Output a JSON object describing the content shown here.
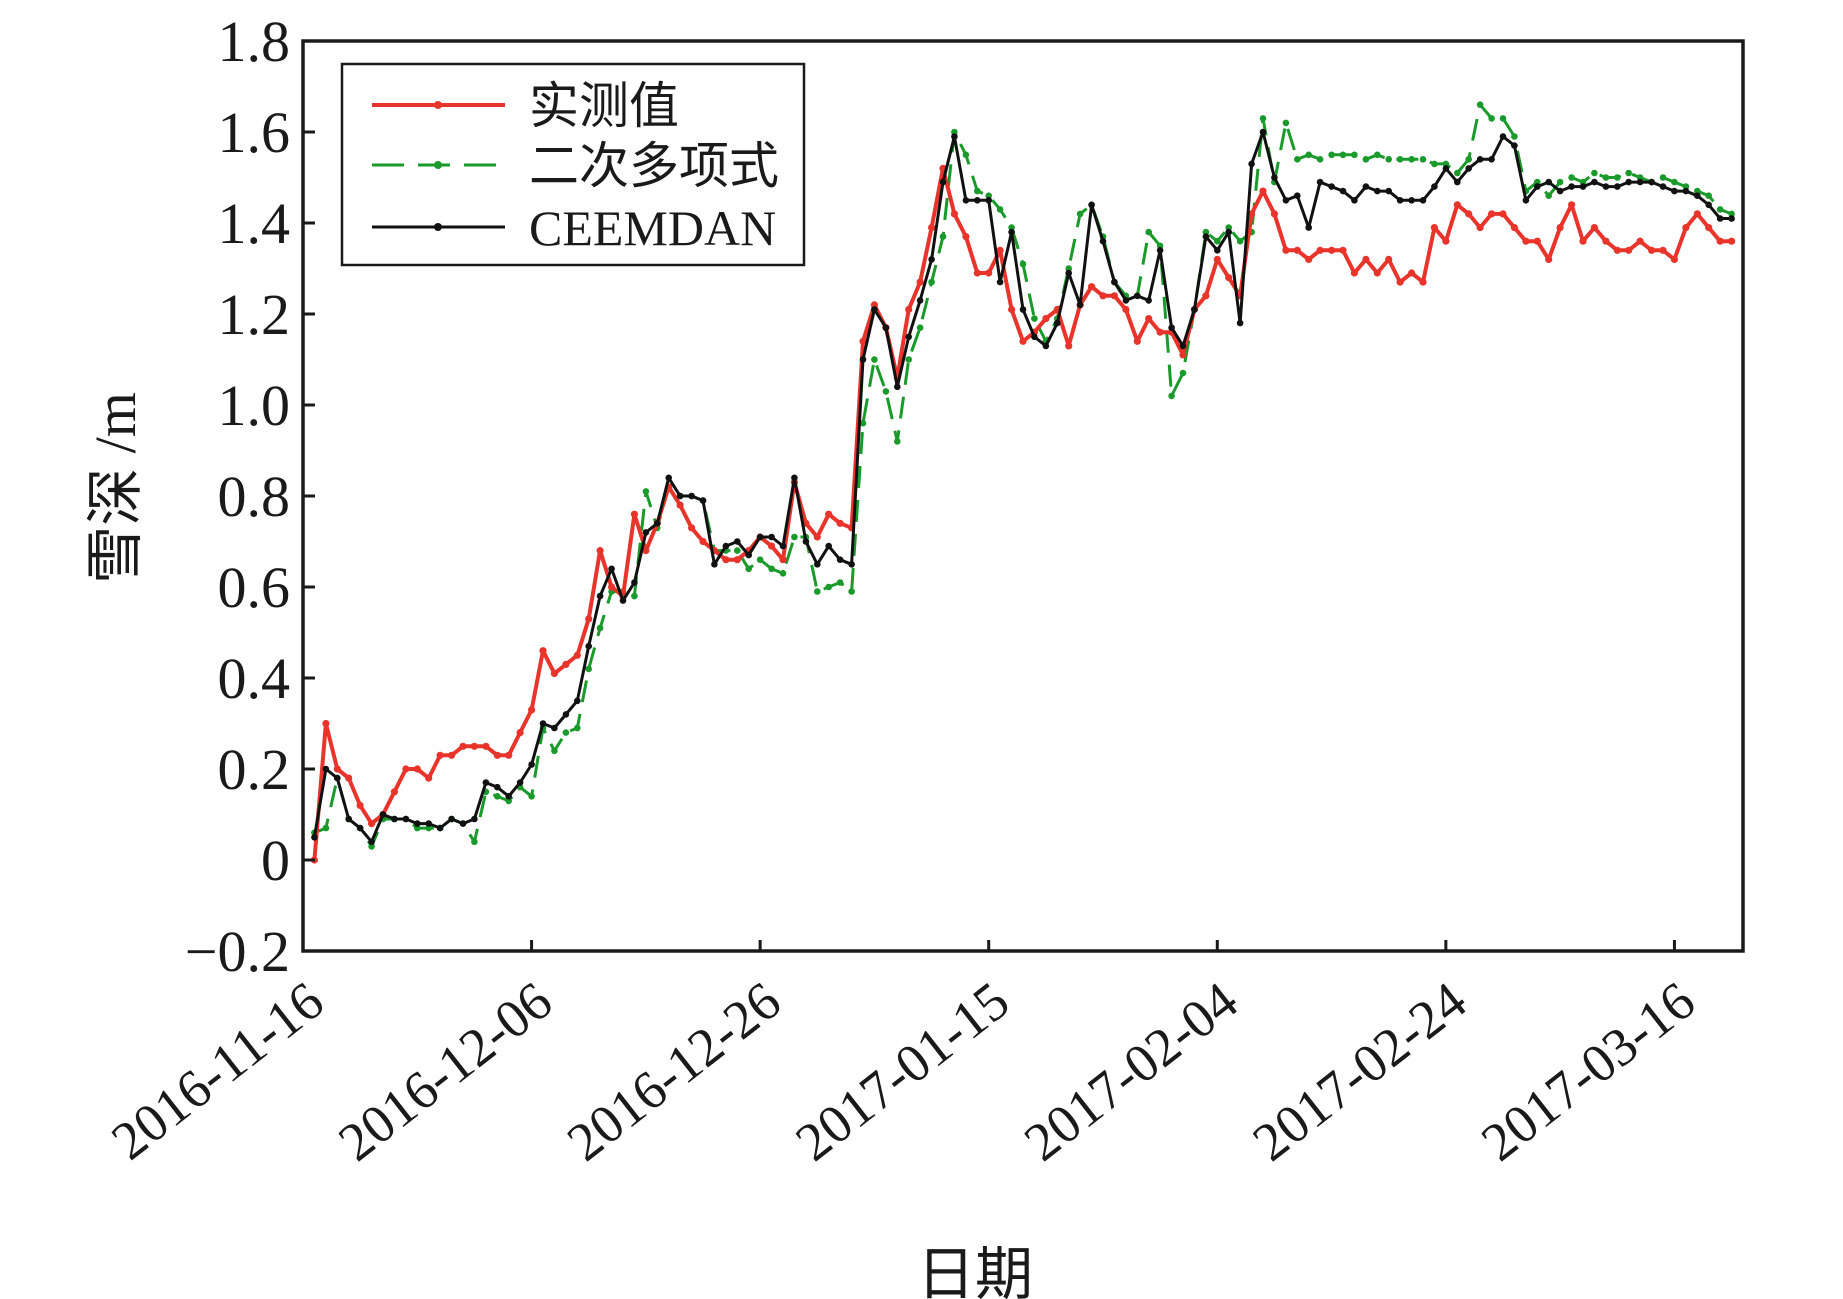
{
  "chart_data": {
    "type": "line",
    "title": "",
    "xlabel": "日期",
    "ylabel": "雪深 /m",
    "ylim": [
      -0.2,
      1.8
    ],
    "yticks": [
      -0.2,
      0,
      0.2,
      0.4,
      0.6,
      0.8,
      1.0,
      1.2,
      1.4,
      1.6,
      1.8
    ],
    "ytick_labels": [
      "−0.2",
      "0",
      "0.2",
      "0.4",
      "0.6",
      "0.8",
      "1.0",
      "1.2",
      "1.4",
      "1.6",
      "1.8"
    ],
    "xlim": [
      "2016-11-16",
      "2017-03-22"
    ],
    "xticks": [
      "2016-11-16",
      "2016-12-06",
      "2016-12-26",
      "2017-01-15",
      "2017-02-04",
      "2017-02-24",
      "2017-03-16"
    ],
    "grid": false,
    "legend_position": "top-left",
    "x": [
      "2016-11-17",
      "2016-11-18",
      "2016-11-19",
      "2016-11-20",
      "2016-11-21",
      "2016-11-22",
      "2016-11-23",
      "2016-11-24",
      "2016-11-25",
      "2016-11-26",
      "2016-11-27",
      "2016-11-28",
      "2016-11-29",
      "2016-11-30",
      "2016-12-01",
      "2016-12-02",
      "2016-12-03",
      "2016-12-04",
      "2016-12-05",
      "2016-12-06",
      "2016-12-07",
      "2016-12-08",
      "2016-12-09",
      "2016-12-10",
      "2016-12-11",
      "2016-12-12",
      "2016-12-13",
      "2016-12-14",
      "2016-12-15",
      "2016-12-16",
      "2016-12-17",
      "2016-12-18",
      "2016-12-19",
      "2016-12-20",
      "2016-12-21",
      "2016-12-22",
      "2016-12-23",
      "2016-12-24",
      "2016-12-25",
      "2016-12-26",
      "2016-12-27",
      "2016-12-28",
      "2016-12-29",
      "2016-12-30",
      "2016-12-31",
      "2017-01-01",
      "2017-01-02",
      "2017-01-03",
      "2017-01-04",
      "2017-01-05",
      "2017-01-06",
      "2017-01-07",
      "2017-01-08",
      "2017-01-09",
      "2017-01-10",
      "2017-01-11",
      "2017-01-12",
      "2017-01-13",
      "2017-01-14",
      "2017-01-15",
      "2017-01-16",
      "2017-01-17",
      "2017-01-18",
      "2017-01-19",
      "2017-01-20",
      "2017-01-21",
      "2017-01-22",
      "2017-01-23",
      "2017-01-24",
      "2017-01-25",
      "2017-01-26",
      "2017-01-27",
      "2017-01-28",
      "2017-01-29",
      "2017-01-30",
      "2017-01-31",
      "2017-02-01",
      "2017-02-02",
      "2017-02-03",
      "2017-02-04",
      "2017-02-05",
      "2017-02-06",
      "2017-02-07",
      "2017-02-08",
      "2017-02-09",
      "2017-02-10",
      "2017-02-11",
      "2017-02-12",
      "2017-02-13",
      "2017-02-14",
      "2017-02-15",
      "2017-02-16",
      "2017-02-17",
      "2017-02-18",
      "2017-02-19",
      "2017-02-20",
      "2017-02-21",
      "2017-02-22",
      "2017-02-23",
      "2017-02-24",
      "2017-02-25",
      "2017-02-26",
      "2017-02-27",
      "2017-02-28",
      "2017-03-01",
      "2017-03-02",
      "2017-03-03",
      "2017-03-04",
      "2017-03-05",
      "2017-03-06",
      "2017-03-07",
      "2017-03-08",
      "2017-03-09",
      "2017-03-10",
      "2017-03-11",
      "2017-03-12",
      "2017-03-13",
      "2017-03-14",
      "2017-03-15",
      "2017-03-16",
      "2017-03-17",
      "2017-03-18",
      "2017-03-19",
      "2017-03-20",
      "2017-03-21"
    ],
    "series": [
      {
        "name": "实测值",
        "color": "#e8342b",
        "style": "solid",
        "values": [
          0.0,
          0.3,
          0.2,
          0.18,
          0.12,
          0.08,
          0.1,
          0.15,
          0.2,
          0.2,
          0.18,
          0.23,
          0.23,
          0.25,
          0.25,
          0.25,
          0.23,
          0.23,
          0.28,
          0.33,
          0.46,
          0.41,
          0.43,
          0.45,
          0.53,
          0.68,
          0.6,
          0.58,
          0.76,
          0.68,
          0.74,
          0.82,
          0.78,
          0.73,
          0.7,
          0.68,
          0.66,
          0.66,
          0.68,
          0.71,
          0.69,
          0.66,
          0.83,
          0.74,
          0.71,
          0.76,
          0.74,
          0.73,
          1.14,
          1.22,
          1.17,
          1.06,
          1.21,
          1.27,
          1.39,
          1.52,
          1.42,
          1.37,
          1.29,
          1.29,
          1.34,
          1.21,
          1.14,
          1.16,
          1.19,
          1.21,
          1.13,
          1.22,
          1.26,
          1.24,
          1.24,
          1.21,
          1.14,
          1.19,
          1.16,
          1.16,
          1.11,
          1.21,
          1.24,
          1.32,
          1.28,
          1.24,
          1.42,
          1.47,
          1.42,
          1.34,
          1.34,
          1.32,
          1.34,
          1.34,
          1.34,
          1.29,
          1.32,
          1.29,
          1.32,
          1.27,
          1.29,
          1.27,
          1.39,
          1.36,
          1.44,
          1.42,
          1.39,
          1.42,
          1.42,
          1.39,
          1.36,
          1.36,
          1.32,
          1.39,
          1.44,
          1.36,
          1.39,
          1.36,
          1.34,
          1.34,
          1.36,
          1.34,
          1.34,
          1.32,
          1.39,
          1.42,
          1.39,
          1.36,
          1.36
        ]
      },
      {
        "name": "二次多项式",
        "color": "#1a9a2a",
        "style": "dashed",
        "values": [
          0.06,
          0.07,
          0.18,
          0.09,
          0.07,
          0.03,
          0.09,
          0.09,
          0.09,
          0.07,
          0.07,
          0.07,
          0.09,
          0.08,
          0.04,
          0.15,
          0.14,
          0.13,
          0.16,
          0.14,
          0.29,
          0.24,
          0.28,
          0.29,
          0.42,
          0.51,
          0.59,
          0.59,
          0.58,
          0.81,
          0.73,
          0.82,
          0.8,
          0.8,
          0.79,
          0.68,
          0.68,
          0.68,
          0.64,
          0.66,
          0.64,
          0.63,
          0.71,
          0.71,
          0.59,
          0.6,
          0.61,
          0.59,
          0.96,
          1.1,
          1.03,
          0.92,
          1.1,
          1.17,
          1.27,
          1.37,
          1.6,
          1.55,
          1.47,
          1.46,
          1.43,
          1.39,
          1.31,
          1.19,
          1.14,
          1.19,
          1.3,
          1.42,
          1.44,
          1.37,
          1.27,
          1.24,
          1.24,
          1.38,
          1.35,
          1.02,
          1.07,
          1.21,
          1.38,
          1.36,
          1.39,
          1.36,
          1.38,
          1.63,
          1.49,
          1.62,
          1.54,
          1.55,
          1.54,
          1.55,
          1.55,
          1.55,
          1.54,
          1.55,
          1.54,
          1.54,
          1.54,
          1.54,
          1.53,
          1.53,
          1.51,
          1.54,
          1.66,
          1.63,
          1.63,
          1.59,
          1.47,
          1.49,
          1.46,
          1.49,
          1.5,
          1.49,
          1.51,
          1.5,
          1.5,
          1.51,
          1.5,
          1.49,
          1.5,
          1.49,
          1.48,
          1.47,
          1.46,
          1.43,
          1.42
        ]
      },
      {
        "name": "CEEMDAN",
        "color": "#111111",
        "style": "solid",
        "values": [
          0.05,
          0.2,
          0.18,
          0.09,
          0.07,
          0.04,
          0.1,
          0.09,
          0.09,
          0.08,
          0.08,
          0.07,
          0.09,
          0.08,
          0.09,
          0.17,
          0.16,
          0.14,
          0.17,
          0.21,
          0.3,
          0.29,
          0.32,
          0.35,
          0.47,
          0.58,
          0.64,
          0.57,
          0.61,
          0.72,
          0.74,
          0.84,
          0.8,
          0.8,
          0.79,
          0.65,
          0.69,
          0.7,
          0.67,
          0.71,
          0.71,
          0.69,
          0.84,
          0.7,
          0.65,
          0.69,
          0.66,
          0.65,
          1.1,
          1.21,
          1.17,
          1.04,
          1.15,
          1.23,
          1.32,
          1.49,
          1.59,
          1.45,
          1.45,
          1.45,
          1.27,
          1.38,
          1.21,
          1.15,
          1.13,
          1.18,
          1.29,
          1.22,
          1.44,
          1.36,
          1.27,
          1.23,
          1.24,
          1.23,
          1.34,
          1.17,
          1.13,
          1.21,
          1.37,
          1.34,
          1.38,
          1.18,
          1.53,
          1.6,
          1.5,
          1.45,
          1.46,
          1.39,
          1.49,
          1.48,
          1.47,
          1.45,
          1.48,
          1.47,
          1.47,
          1.45,
          1.45,
          1.45,
          1.48,
          1.52,
          1.49,
          1.52,
          1.54,
          1.54,
          1.59,
          1.57,
          1.45,
          1.48,
          1.49,
          1.47,
          1.48,
          1.48,
          1.49,
          1.48,
          1.48,
          1.49,
          1.49,
          1.49,
          1.48,
          1.47,
          1.47,
          1.46,
          1.44,
          1.41,
          1.41
        ]
      }
    ]
  }
}
